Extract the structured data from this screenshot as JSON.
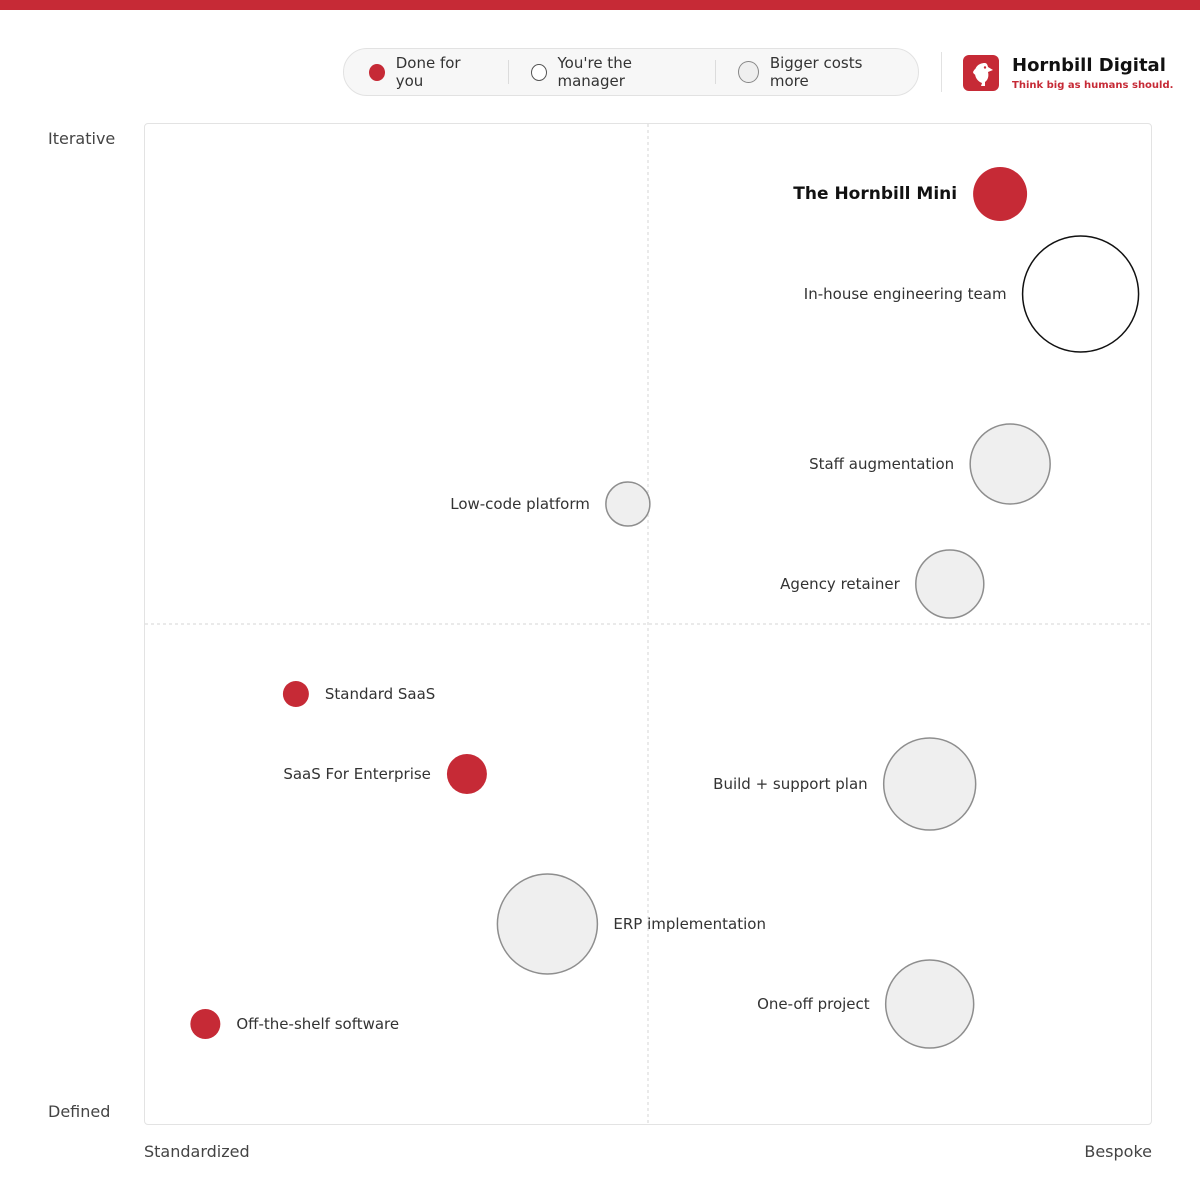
{
  "legend": {
    "items": [
      {
        "label": "Done for you",
        "swatch": "filled"
      },
      {
        "label": "You're the manager",
        "swatch": "hollow"
      },
      {
        "label": "Bigger costs more",
        "swatch": "size"
      }
    ]
  },
  "brand": {
    "name": "Hornbill Digital",
    "tagline": "Think big as humans should.",
    "logo_icon": "hornbill-bird-icon",
    "color": "#c62a36"
  },
  "chart_data": {
    "type": "scatter",
    "xlabel_left": "Standardized",
    "xlabel_right": "Bespoke",
    "ylabel_top": "Iterative",
    "ylabel_bottom": "Defined",
    "xlim": [
      0,
      100
    ],
    "ylim": [
      0,
      100
    ],
    "quadrant_dividers": {
      "x": 50,
      "y": 50
    },
    "colors": {
      "done_for_you": "#c62a36",
      "manager": "#ffffff",
      "neutral": "#efefef"
    },
    "points": [
      {
        "label": "The Hornbill Mini",
        "x": 85,
        "y": 93,
        "size": 27,
        "category": "done_for_you",
        "label_side": "left",
        "bold": true
      },
      {
        "label": "In-house engineering team",
        "x": 93,
        "y": 83,
        "size": 58,
        "category": "manager",
        "label_side": "left"
      },
      {
        "label": "Staff augmentation",
        "x": 86,
        "y": 66,
        "size": 40,
        "category": "neutral",
        "label_side": "left"
      },
      {
        "label": "Low-code platform",
        "x": 48,
        "y": 62,
        "size": 22,
        "category": "neutral",
        "label_side": "left"
      },
      {
        "label": "Agency retainer",
        "x": 80,
        "y": 54,
        "size": 34,
        "category": "neutral",
        "label_side": "left"
      },
      {
        "label": "Standard SaaS",
        "x": 15,
        "y": 43,
        "size": 13,
        "category": "done_for_you",
        "label_side": "right"
      },
      {
        "label": "SaaS For Enterprise",
        "x": 32,
        "y": 35,
        "size": 20,
        "category": "done_for_you",
        "label_side": "left"
      },
      {
        "label": "Build + support plan",
        "x": 78,
        "y": 34,
        "size": 46,
        "category": "neutral",
        "label_side": "left"
      },
      {
        "label": "ERP implementation",
        "x": 40,
        "y": 20,
        "size": 50,
        "category": "neutral",
        "label_side": "right"
      },
      {
        "label": "One-off project",
        "x": 78,
        "y": 12,
        "size": 44,
        "category": "neutral",
        "label_side": "left"
      },
      {
        "label": "Off-the-shelf software",
        "x": 6,
        "y": 10,
        "size": 15,
        "category": "done_for_you",
        "label_side": "right"
      }
    ]
  }
}
